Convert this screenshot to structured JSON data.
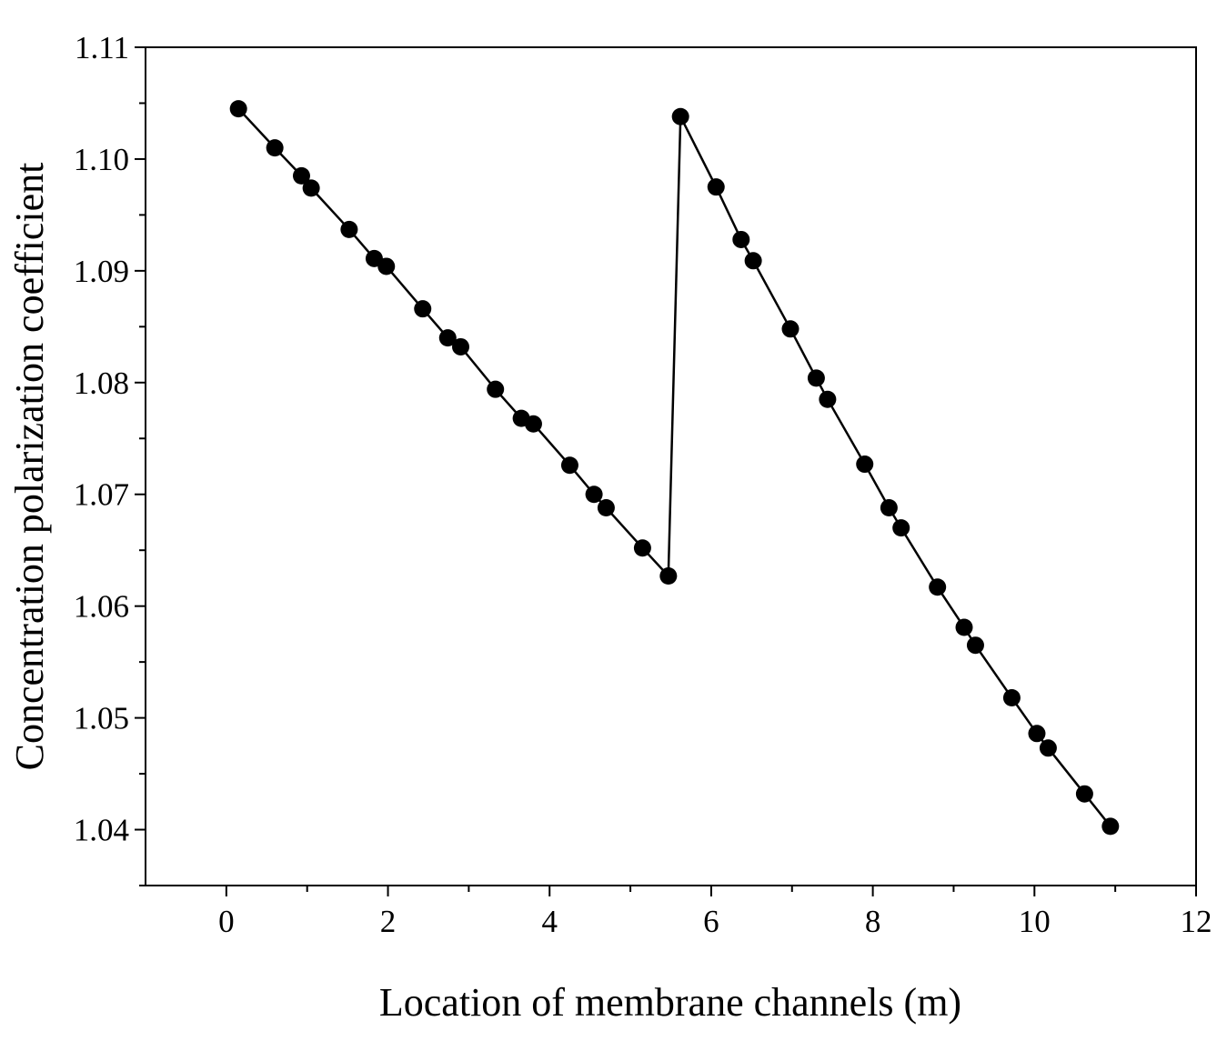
{
  "chart_data": {
    "type": "line",
    "title": "",
    "xlabel": "Location of membrane channels (m)",
    "ylabel": "Concentration polarization coefficient",
    "xlim": [
      -1,
      12
    ],
    "ylim": [
      1.035,
      1.11
    ],
    "x_ticks": [
      0,
      2,
      4,
      6,
      8,
      10,
      12
    ],
    "x_tick_labels": [
      "0",
      "2",
      "4",
      "6",
      "8",
      "10",
      "12"
    ],
    "y_ticks": [
      1.04,
      1.05,
      1.06,
      1.07,
      1.08,
      1.09,
      1.1,
      1.11
    ],
    "y_tick_labels": [
      "1.04",
      "1.05",
      "1.06",
      "1.07",
      "1.08",
      "1.09",
      "1.10",
      "1.11"
    ],
    "grid": false,
    "legend": "none",
    "series": [
      {
        "color": "#000000",
        "marker": "circle",
        "x": [
          0.15,
          0.6,
          0.93,
          1.05,
          1.52,
          1.83,
          1.98,
          2.43,
          2.74,
          2.9,
          3.33,
          3.65,
          3.8,
          4.25,
          4.55,
          4.7,
          5.15,
          5.47,
          5.62,
          6.06,
          6.37,
          6.52,
          6.98,
          7.3,
          7.44,
          7.9,
          8.2,
          8.35,
          8.8,
          9.13,
          9.27,
          9.72,
          10.03,
          10.17,
          10.62,
          10.94
        ],
        "y": [
          1.1045,
          1.101,
          1.0985,
          1.0974,
          1.0937,
          1.0911,
          1.0904,
          1.0866,
          1.084,
          1.0832,
          1.0794,
          1.0768,
          1.0763,
          1.0726,
          1.07,
          1.0688,
          1.0652,
          1.0627,
          1.1038,
          1.0975,
          1.0928,
          1.0909,
          1.0848,
          1.0804,
          1.0785,
          1.0727,
          1.0688,
          1.067,
          1.0617,
          1.0581,
          1.0565,
          1.0518,
          1.0486,
          1.0473,
          1.0432,
          1.0403
        ]
      }
    ]
  }
}
